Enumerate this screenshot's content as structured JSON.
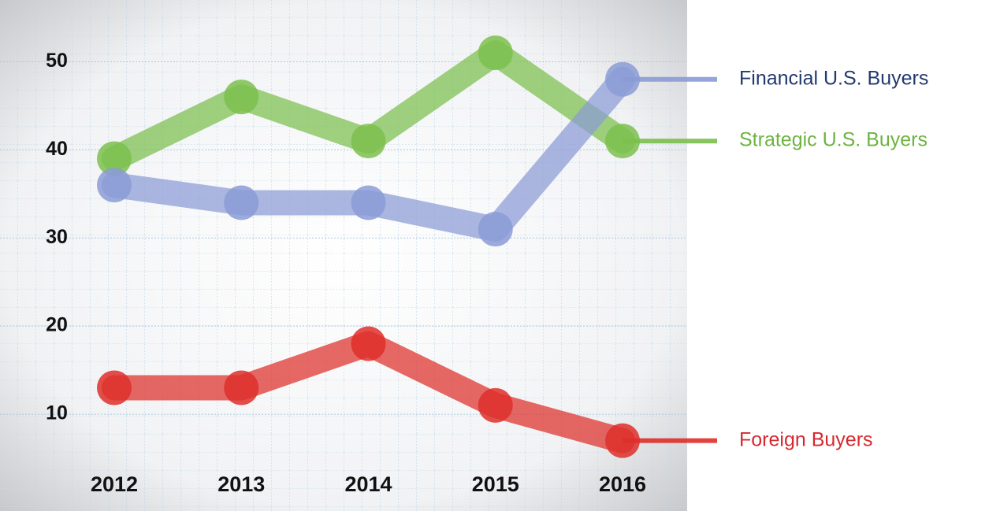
{
  "chart_data": {
    "type": "line",
    "categories": [
      "2012",
      "2013",
      "2014",
      "2015",
      "2016"
    ],
    "series": [
      {
        "name": "Strategic U.S. Buyers",
        "color": "#7cbf4e",
        "values": [
          39,
          46,
          41,
          51,
          41
        ]
      },
      {
        "name": "Financial U.S. Buyers",
        "color": "#8b9bd6",
        "values": [
          36,
          34,
          34,
          31,
          48
        ]
      },
      {
        "name": "Foreign Buyers",
        "color": "#de2f2a",
        "values": [
          13,
          13,
          18,
          11,
          7
        ]
      }
    ],
    "ylim": [
      0,
      57
    ],
    "yticks": [
      10,
      20,
      30,
      40,
      50
    ],
    "grid": true,
    "legend": "right"
  }
}
